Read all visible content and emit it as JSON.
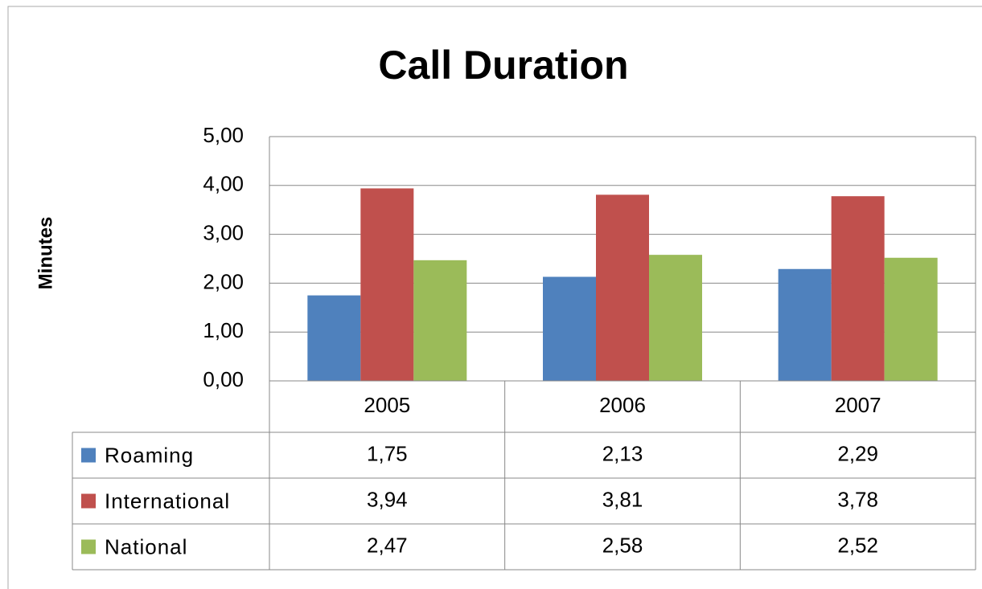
{
  "chart_data": {
    "type": "bar",
    "title": "Call Duration",
    "y_label": "Minutes",
    "categories": [
      "2005",
      "2006",
      "2007"
    ],
    "series": [
      {
        "name": "Roaming",
        "color": "#4f81bd",
        "values": [
          1.75,
          2.13,
          2.29
        ],
        "value_labels": [
          "1,75",
          "2,13",
          "2,29"
        ]
      },
      {
        "name": "International",
        "color": "#c0504d",
        "values": [
          3.94,
          3.81,
          3.78
        ],
        "value_labels": [
          "3,94",
          "3,81",
          "3,78"
        ]
      },
      {
        "name": "National",
        "color": "#9bbb59",
        "values": [
          2.47,
          2.58,
          2.52
        ],
        "value_labels": [
          "2,47",
          "2,58",
          "2,52"
        ]
      }
    ],
    "ylim": [
      0,
      5
    ],
    "yticks": [
      {
        "value": 0,
        "label": "0,00"
      },
      {
        "value": 1,
        "label": "1,00"
      },
      {
        "value": 2,
        "label": "2,00"
      },
      {
        "value": 3,
        "label": "3,00"
      },
      {
        "value": 4,
        "label": "4,00"
      },
      {
        "value": 5,
        "label": "5,00"
      }
    ],
    "grid": true,
    "legend": "table"
  }
}
